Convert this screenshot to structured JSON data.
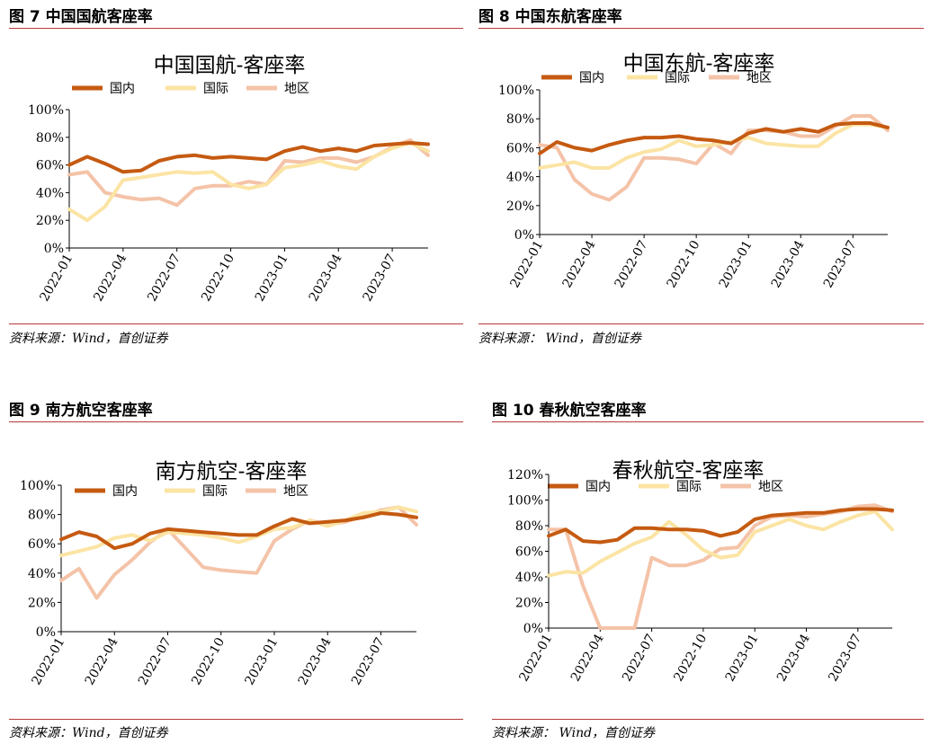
{
  "colors": {
    "domestic": "#c55a11",
    "international": "#fbe4a4",
    "regional": "#f4c3a8",
    "rule": "#b83a3a"
  },
  "panels": [
    {
      "fig_label": "图 7 中国国航客座率",
      "source": "资料来源：Wind，首创证券",
      "chart_data": {
        "type": "line",
        "title": "中国国航-客座率",
        "x": [
          "2022-01",
          "2022-02",
          "2022-03",
          "2022-04",
          "2022-05",
          "2022-06",
          "2022-07",
          "2022-08",
          "2022-09",
          "2022-10",
          "2022-11",
          "2022-12",
          "2023-01",
          "2023-02",
          "2023-03",
          "2023-04",
          "2023-05",
          "2023-06",
          "2023-07",
          "2023-08",
          "2023-09"
        ],
        "xticks": [
          "2022-01",
          "2022-04",
          "2022-07",
          "2022-10",
          "2023-01",
          "2023-04",
          "2023-07"
        ],
        "yticks": [
          "0%",
          "20%",
          "40%",
          "60%",
          "80%",
          "100%"
        ],
        "ylim": [
          0,
          100
        ],
        "series": [
          {
            "name": "国内",
            "key": "domestic",
            "values": [
              60,
              66,
              61,
              55,
              56,
              63,
              66,
              67,
              65,
              66,
              65,
              64,
              70,
              73,
              70,
              72,
              70,
              74,
              75,
              76,
              75
            ]
          },
          {
            "name": "国际",
            "key": "international",
            "values": [
              28,
              20,
              30,
              49,
              51,
              53,
              55,
              54,
              55,
              46,
              43,
              46,
              58,
              60,
              63,
              59,
              57,
              66,
              72,
              76,
              70
            ]
          },
          {
            "name": "地区",
            "key": "regional",
            "values": [
              53,
              55,
              40,
              37,
              35,
              36,
              31,
              43,
              45,
              45,
              48,
              46,
              63,
              62,
              65,
              65,
              62,
              66,
              73,
              78,
              67
            ]
          }
        ],
        "legend": "top"
      }
    },
    {
      "fig_label": "图 8 中国东航客座率",
      "source": "资料来源： Wind，首创证券",
      "chart_data": {
        "type": "line",
        "title": "中国东航-客座率",
        "x": [
          "2022-01",
          "2022-02",
          "2022-03",
          "2022-04",
          "2022-05",
          "2022-06",
          "2022-07",
          "2022-08",
          "2022-09",
          "2022-10",
          "2022-11",
          "2022-12",
          "2023-01",
          "2023-02",
          "2023-03",
          "2023-04",
          "2023-05",
          "2023-06",
          "2023-07",
          "2023-08",
          "2023-09"
        ],
        "xticks": [
          "2022-01",
          "2022-04",
          "2022-07",
          "2022-10",
          "2023-01",
          "2023-04",
          "2023-07"
        ],
        "yticks": [
          "0%",
          "20%",
          "40%",
          "60%",
          "80%",
          "100%"
        ],
        "ylim": [
          0,
          100
        ],
        "series": [
          {
            "name": "国内",
            "key": "domestic",
            "values": [
              56,
              64,
              60,
              58,
              62,
              65,
              67,
              67,
              68,
              66,
              65,
              63,
              70,
              73,
              71,
              73,
              71,
              76,
              77,
              77,
              74
            ]
          },
          {
            "name": "国际",
            "key": "international",
            "values": [
              46,
              48,
              50,
              46,
              46,
              53,
              57,
              59,
              65,
              61,
              62,
              64,
              67,
              63,
              62,
              61,
              61,
              70,
              76,
              76,
              74
            ]
          },
          {
            "name": "地区",
            "key": "regional",
            "values": [
              62,
              60,
              38,
              28,
              24,
              33,
              53,
              53,
              52,
              49,
              63,
              56,
              72,
              72,
              71,
              68,
              68,
              75,
              82,
              82,
              72
            ]
          }
        ],
        "legend": "top"
      }
    },
    {
      "fig_label": "图 9 南方航空客座率",
      "source": "资料来源：Wind，首创证券",
      "chart_data": {
        "type": "line",
        "title": "南方航空-客座率",
        "x": [
          "2022-01",
          "2022-02",
          "2022-03",
          "2022-04",
          "2022-05",
          "2022-06",
          "2022-07",
          "2022-08",
          "2022-09",
          "2022-10",
          "2022-11",
          "2022-12",
          "2023-01",
          "2023-02",
          "2023-03",
          "2023-04",
          "2023-05",
          "2023-06",
          "2023-07",
          "2023-08",
          "2023-09"
        ],
        "xticks": [
          "2022-01",
          "2022-04",
          "2022-07",
          "2022-10",
          "2023-01",
          "2023-04",
          "2023-07"
        ],
        "yticks": [
          "0%",
          "20%",
          "40%",
          "60%",
          "80%",
          "100%"
        ],
        "ylim": [
          0,
          100
        ],
        "series": [
          {
            "name": "国内",
            "key": "domestic",
            "values": [
              63,
              68,
              65,
              57,
              60,
              67,
              70,
              69,
              68,
              67,
              66,
              66,
              72,
              77,
              74,
              75,
              76,
              78,
              81,
              80,
              78
            ]
          },
          {
            "name": "国际",
            "key": "international",
            "values": [
              52,
              55,
              58,
              64,
              66,
              62,
              68,
              67,
              66,
              64,
              61,
              65,
              70,
              71,
              76,
              72,
              76,
              81,
              82,
              85,
              82
            ]
          },
          {
            "name": "地区",
            "key": "regional",
            "values": [
              35,
              43,
              23,
              39,
              49,
              61,
              70,
              57,
              44,
              42,
              41,
              40,
              62,
              70,
              76,
              73,
              75,
              79,
              83,
              85,
              73
            ]
          }
        ],
        "legend": "top"
      }
    },
    {
      "fig_label": "图 10 春秋航空客座率",
      "source": "资料来源： Wind，首创证券",
      "chart_data": {
        "type": "line",
        "title": "春秋航空-客座率",
        "x": [
          "2022-01",
          "2022-02",
          "2022-03",
          "2022-04",
          "2022-05",
          "2022-06",
          "2022-07",
          "2022-08",
          "2022-09",
          "2022-10",
          "2022-11",
          "2022-12",
          "2023-01",
          "2023-02",
          "2023-03",
          "2023-04",
          "2023-05",
          "2023-06",
          "2023-07",
          "2023-08",
          "2023-09"
        ],
        "xticks": [
          "2022-01",
          "2022-04",
          "2022-07",
          "2022-10",
          "2023-01",
          "2023-04",
          "2023-07"
        ],
        "yticks": [
          "0%",
          "20%",
          "40%",
          "60%",
          "80%",
          "100%",
          "120%"
        ],
        "ylim": [
          0,
          120
        ],
        "series": [
          {
            "name": "国内",
            "key": "domestic",
            "values": [
              72,
              77,
              68,
              67,
              69,
              78,
              78,
              77,
              77,
              76,
              72,
              75,
              85,
              88,
              89,
              90,
              90,
              92,
              93,
              93,
              92
            ]
          },
          {
            "name": "国际",
            "key": "international",
            "values": [
              41,
              44,
              43,
              52,
              59,
              66,
              71,
              83,
              73,
              61,
              55,
              57,
              75,
              80,
              85,
              80,
              77,
              83,
              88,
              91,
              77
            ]
          },
          {
            "name": "地区",
            "key": "regional",
            "values": [
              77,
              77,
              33,
              0,
              0,
              0,
              55,
              49,
              49,
              53,
              62,
              63,
              80,
              87,
              88,
              87,
              89,
              91,
              95,
              96,
              91
            ]
          }
        ],
        "legend": "top"
      }
    }
  ]
}
